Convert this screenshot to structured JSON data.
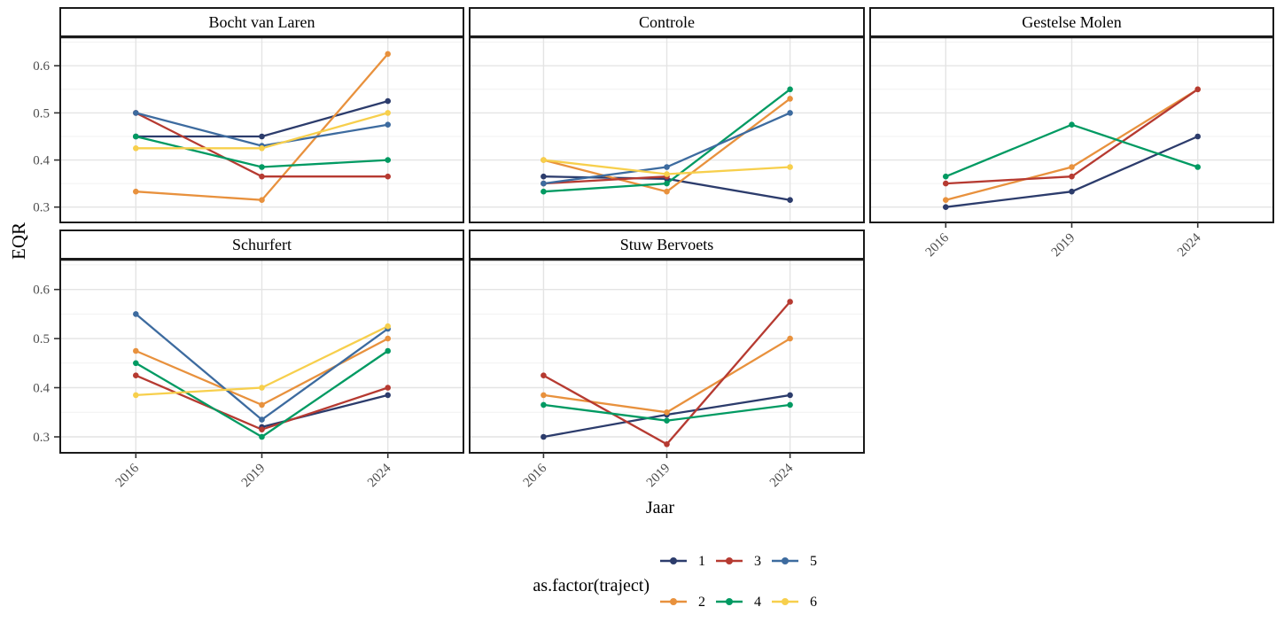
{
  "chart_data": {
    "type": "line",
    "title": "",
    "xlabel": "Jaar",
    "ylabel": "EQR",
    "x_categories": [
      "2016",
      "2019",
      "2024"
    ],
    "y_ticks": [
      0.3,
      0.4,
      0.5,
      0.6
    ],
    "y_minor_ticks": [
      0.35,
      0.45,
      0.55,
      0.65
    ],
    "ylim": [
      0.2675,
      0.6625
    ],
    "grid": "horizontal major+minor light grey, vertical major at each year",
    "legend": {
      "title": "as.factor(traject)",
      "position": "bottom"
    },
    "series_defs": [
      {
        "name": "1",
        "color": "#2C3C6C"
      },
      {
        "name": "2",
        "color": "#E8913D"
      },
      {
        "name": "3",
        "color": "#B63A31"
      },
      {
        "name": "4",
        "color": "#009A62"
      },
      {
        "name": "5",
        "color": "#3D6B9F"
      },
      {
        "name": "6",
        "color": "#F7CF4C"
      }
    ],
    "panels": [
      {
        "title": "Bocht van Laren",
        "row": 0,
        "col": 0,
        "x_axis": false,
        "series": [
          {
            "name": "1",
            "values": [
              0.45,
              0.45,
              0.525
            ]
          },
          {
            "name": "2",
            "values": [
              0.333,
              0.315,
              0.625
            ]
          },
          {
            "name": "3",
            "values": [
              0.5,
              0.365,
              0.365
            ]
          },
          {
            "name": "4",
            "values": [
              0.45,
              0.385,
              0.4
            ]
          },
          {
            "name": "5",
            "values": [
              0.5,
              0.43,
              0.475
            ]
          },
          {
            "name": "6",
            "values": [
              0.425,
              0.425,
              0.5
            ]
          }
        ]
      },
      {
        "title": "Controle",
        "row": 0,
        "col": 1,
        "x_axis": false,
        "series": [
          {
            "name": "1",
            "values": [
              0.365,
              0.36,
              0.315
            ]
          },
          {
            "name": "2",
            "values": [
              0.4,
              0.333,
              0.53
            ]
          },
          {
            "name": "3",
            "values": [
              0.35,
              0.365,
              null
            ]
          },
          {
            "name": "4",
            "values": [
              0.333,
              0.35,
              0.55
            ]
          },
          {
            "name": "5",
            "values": [
              0.35,
              0.385,
              0.5
            ]
          },
          {
            "name": "6",
            "values": [
              0.4,
              0.37,
              0.385
            ]
          }
        ]
      },
      {
        "title": "Gestelse Molen",
        "row": 0,
        "col": 2,
        "x_axis": true,
        "series": [
          {
            "name": "1",
            "values": [
              0.3,
              0.333,
              0.45
            ]
          },
          {
            "name": "2",
            "values": [
              0.315,
              0.385,
              0.55
            ]
          },
          {
            "name": "3",
            "values": [
              0.35,
              0.365,
              0.55
            ]
          },
          {
            "name": "4",
            "values": [
              0.365,
              0.475,
              0.385
            ]
          }
        ]
      },
      {
        "title": "Schurfert",
        "row": 1,
        "col": 0,
        "x_axis": true,
        "series": [
          {
            "name": "1",
            "values": [
              null,
              0.32,
              0.385
            ]
          },
          {
            "name": "2",
            "values": [
              0.475,
              0.365,
              0.5
            ]
          },
          {
            "name": "3",
            "values": [
              0.425,
              0.315,
              0.4
            ]
          },
          {
            "name": "4",
            "values": [
              0.45,
              0.3,
              0.475
            ]
          },
          {
            "name": "5",
            "values": [
              0.55,
              0.335,
              0.52
            ]
          },
          {
            "name": "6",
            "values": [
              0.385,
              0.4,
              0.525
            ]
          }
        ]
      },
      {
        "title": "Stuw Bervoets",
        "row": 1,
        "col": 1,
        "x_axis": true,
        "series": [
          {
            "name": "1",
            "values": [
              0.3,
              0.345,
              0.385
            ]
          },
          {
            "name": "2",
            "values": [
              0.385,
              0.35,
              0.5
            ]
          },
          {
            "name": "3",
            "values": [
              0.425,
              0.285,
              0.575
            ]
          },
          {
            "name": "4",
            "values": [
              0.365,
              0.333,
              0.365
            ]
          }
        ]
      }
    ]
  }
}
